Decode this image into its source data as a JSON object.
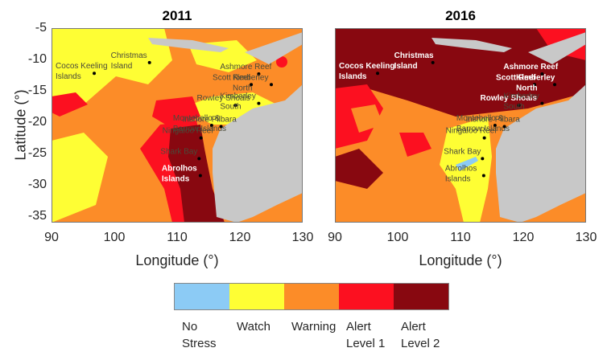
{
  "chart_data": {
    "type": "heatmap",
    "panels": [
      {
        "title": "2011",
        "xlabel": "Longitude (°)",
        "ylabel": "Latitude (°)",
        "xlim": [
          90,
          130
        ],
        "ylim": [
          -36,
          -5
        ],
        "xticks": [
          "90",
          "100",
          "110",
          "120",
          "130"
        ],
        "yticks": [
          "-5",
          "-10",
          "-15",
          "-20",
          "-25",
          "-30",
          "-35"
        ],
        "dominant_categories": [
          "Watch",
          "Warning",
          "Alert Level 2 (Abrolhos region)"
        ],
        "labels": [
          {
            "text": "Cocos Keeling",
            "lon": 96.8,
            "lat": -12.2,
            "color": "dark"
          },
          {
            "text": "Islands",
            "lon": 96.8,
            "lat": -12.2,
            "color": "dark"
          },
          {
            "text": "Christmas",
            "lon": 105.6,
            "lat": -10.5,
            "color": "dark"
          },
          {
            "text": "Island",
            "lon": 105.6,
            "lat": -10.5,
            "color": "dark"
          },
          {
            "text": "Ashmore Reef",
            "lon": 123,
            "lat": -12.3,
            "color": "dark"
          },
          {
            "text": "Scott Reef",
            "lon": 121.8,
            "lat": -14,
            "color": "dark"
          },
          {
            "text": "Kimberley",
            "lon": 125,
            "lat": -14,
            "color": "dark"
          },
          {
            "text": "North",
            "lon": 125,
            "lat": -14,
            "color": "dark"
          },
          {
            "text": "Rowley Shoals",
            "lon": 119.3,
            "lat": -17.3,
            "color": "dark"
          },
          {
            "text": "Kimberley",
            "lon": 123,
            "lat": -17,
            "color": "dark"
          },
          {
            "text": "South",
            "lon": 123,
            "lat": -17,
            "color": "dark"
          },
          {
            "text": "Montebello &",
            "lon": 115.5,
            "lat": -20.5,
            "color": "dark"
          },
          {
            "text": "Barrow Islands",
            "lon": 115.5,
            "lat": -20.5,
            "color": "dark"
          },
          {
            "text": "Inshore Pilbara",
            "lon": 117,
            "lat": -20.7,
            "color": "dark"
          },
          {
            "text": "Ningaloo Reef",
            "lon": 113.8,
            "lat": -22.5,
            "color": "dark"
          },
          {
            "text": "Shark Bay",
            "lon": 113.5,
            "lat": -25.8,
            "color": "dark"
          },
          {
            "text": "Abrolhos",
            "lon": 113.7,
            "lat": -28.5,
            "color": "white"
          },
          {
            "text": "Islands",
            "lon": 113.7,
            "lat": -28.5,
            "color": "white"
          }
        ]
      },
      {
        "title": "2016",
        "xlabel": "Longitude (°)",
        "ylabel": "",
        "xlim": [
          90,
          130
        ],
        "ylim": [
          -36,
          -5
        ],
        "xticks": [
          "90",
          "100",
          "110",
          "120",
          "130"
        ],
        "yticks": [],
        "dominant_categories": [
          "Alert Level 2 (north)",
          "Warning",
          "Watch (near WA coast)"
        ],
        "labels": [
          {
            "text": "Cocos Keeling",
            "lon": 96.8,
            "lat": -12.2,
            "color": "white"
          },
          {
            "text": "Islands",
            "lon": 96.8,
            "lat": -12.2,
            "color": "white"
          },
          {
            "text": "Christmas",
            "lon": 105.6,
            "lat": -10.5,
            "color": "white"
          },
          {
            "text": "Island",
            "lon": 105.6,
            "lat": -10.5,
            "color": "white"
          },
          {
            "text": "Ashmore Reef",
            "lon": 123,
            "lat": -12.3,
            "color": "white"
          },
          {
            "text": "Scott Reef",
            "lon": 121.8,
            "lat": -14,
            "color": "white"
          },
          {
            "text": "Kimberley",
            "lon": 125,
            "lat": -14,
            "color": "white"
          },
          {
            "text": "North",
            "lon": 125,
            "lat": -14,
            "color": "white"
          },
          {
            "text": "Rowley Shoals",
            "lon": 119.3,
            "lat": -17.3,
            "color": "white"
          },
          {
            "text": "Kimberley",
            "lon": 123,
            "lat": -17,
            "color": "dark"
          },
          {
            "text": "South",
            "lon": 123,
            "lat": -17,
            "color": "dark"
          },
          {
            "text": "Montebello &",
            "lon": 115.5,
            "lat": -20.5,
            "color": "dark"
          },
          {
            "text": "Barrow Islands",
            "lon": 115.5,
            "lat": -20.5,
            "color": "dark"
          },
          {
            "text": "Inshore Pilbara",
            "lon": 117,
            "lat": -20.7,
            "color": "dark"
          },
          {
            "text": "Ningaloo Reef",
            "lon": 113.8,
            "lat": -22.5,
            "color": "dark"
          },
          {
            "text": "Shark Bay",
            "lon": 113.5,
            "lat": -25.8,
            "color": "dark"
          },
          {
            "text": "Abrolhos",
            "lon": 113.7,
            "lat": -28.5,
            "color": "dark"
          },
          {
            "text": "Islands",
            "lon": 113.7,
            "lat": -28.5,
            "color": "dark"
          }
        ]
      }
    ],
    "legend": {
      "placement": "bottom",
      "categories": [
        {
          "name": "No Stress",
          "line1": "No",
          "line2": "Stress",
          "color": "#8ccbf5"
        },
        {
          "name": "Watch",
          "line1": "Watch",
          "line2": "",
          "color": "#fefe34"
        },
        {
          "name": "Warning",
          "line1": "Warning",
          "line2": "",
          "color": "#fc8c28"
        },
        {
          "name": "Alert Level 1",
          "line1": "Alert",
          "line2": "Level 1",
          "color": "#fc1020"
        },
        {
          "name": "Alert Level 2",
          "line1": "Alert",
          "line2": "Level 2",
          "color": "#880810"
        }
      ]
    },
    "land_color": "#c8c8c8"
  }
}
